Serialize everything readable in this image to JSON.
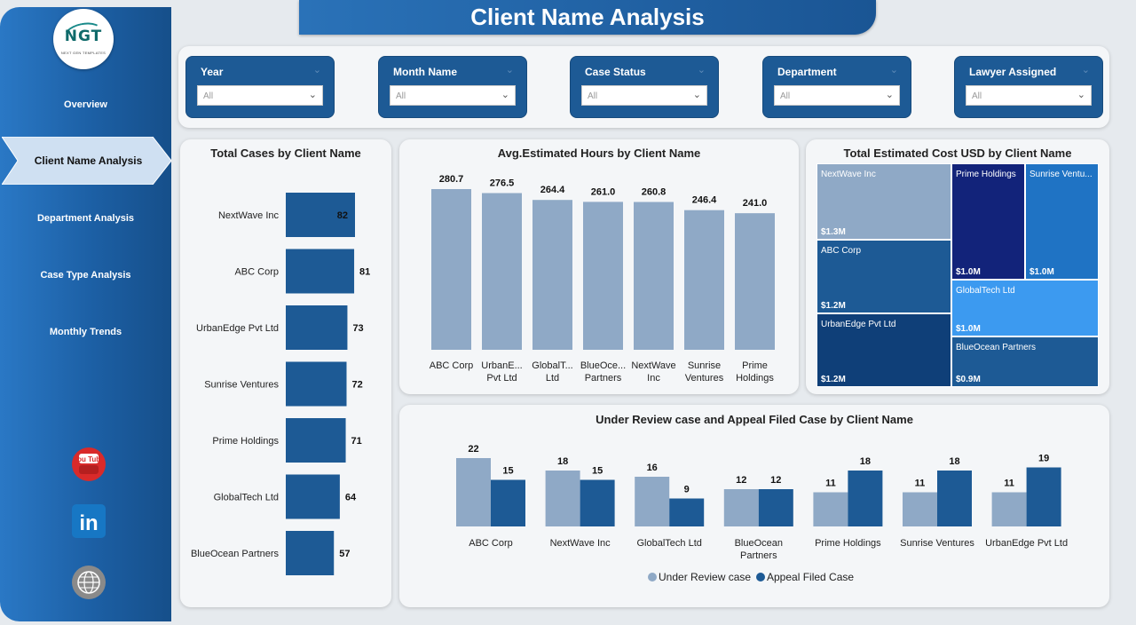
{
  "title": "Client Name Analysis",
  "logo": {
    "text": "NGT",
    "sub": "NEXT GEN TEMPLATES"
  },
  "nav": {
    "items": [
      "Overview",
      "Client Name Analysis",
      "Department Analysis",
      "Case Type Analysis",
      "Monthly Trends"
    ],
    "active": "Client Name Analysis"
  },
  "social": {
    "youtube": "You Tube",
    "linkedin": "in"
  },
  "icons": {
    "youtube": "youtube-icon",
    "linkedin": "linkedin-icon",
    "web": "globe-www-icon"
  },
  "filters": [
    {
      "label": "Year",
      "value": "All"
    },
    {
      "label": "Month Name",
      "value": "All"
    },
    {
      "label": "Case Status",
      "value": "All"
    },
    {
      "label": "Department",
      "value": "All"
    },
    {
      "label": "Lawyer Assigned",
      "value": "All"
    }
  ],
  "colors": {
    "dark_blue": "#1d5a95",
    "light_blue": "#8fa9c6",
    "accent": "#2a72b8"
  },
  "chart_data": [
    {
      "type": "bar",
      "orientation": "horizontal",
      "title": "Total Cases by Client Name",
      "categories": [
        "NextWave Inc",
        "ABC Corp",
        "UrbanEdge Pvt Ltd",
        "Sunrise Ventures",
        "Prime Holdings",
        "GlobalTech Ltd",
        "BlueOcean Partners"
      ],
      "values": [
        82,
        81,
        73,
        72,
        71,
        64,
        57
      ]
    },
    {
      "type": "bar",
      "title": "Avg.Estimated Hours by Client Name",
      "categories": [
        "ABC Corp",
        "UrbanEdge Pvt Ltd",
        "GlobalTech Ltd",
        "BlueOcean Partners",
        "NextWave Inc",
        "Sunrise Ventures",
        "Prime Holdings"
      ],
      "category_labels": [
        [
          "ABC Corp"
        ],
        [
          "UrbanE...",
          "Pvt Ltd"
        ],
        [
          "GlobalT...",
          "Ltd"
        ],
        [
          "BlueOce...",
          "Partners"
        ],
        [
          "NextWave",
          "Inc"
        ],
        [
          "Sunrise",
          "Ventures"
        ],
        [
          "Prime",
          "Holdings"
        ]
      ],
      "values": [
        280.7,
        276.5,
        264.4,
        261.0,
        260.8,
        246.4,
        241.0
      ],
      "value_labels": [
        "280.7",
        "276.5",
        "264.4",
        "261.0",
        "260.8",
        "246.4",
        "241.0"
      ]
    },
    {
      "type": "treemap",
      "title": "Total Estimated Cost USD by Client Name",
      "items": [
        {
          "name": "NextWave Inc",
          "value": 1.3,
          "label": "$1.3M",
          "color": "#8fa9c6"
        },
        {
          "name": "ABC Corp",
          "value": 1.2,
          "label": "$1.2M",
          "color": "#1d5a95"
        },
        {
          "name": "UrbanEdge Pvt Ltd",
          "value": 1.2,
          "label": "$1.2M",
          "color": "#0f3f78"
        },
        {
          "name": "Prime Holdings",
          "value": 1.0,
          "label": "$1.0M",
          "color": "#12237a"
        },
        {
          "name": "Sunrise Ventu...",
          "value": 1.0,
          "label": "$1.0M",
          "color": "#1f73c4"
        },
        {
          "name": "GlobalTech Ltd",
          "value": 1.0,
          "label": "$1.0M",
          "color": "#3c9af0"
        },
        {
          "name": "BlueOcean Partners",
          "value": 0.9,
          "label": "$0.9M",
          "color": "#1d5a95"
        }
      ]
    },
    {
      "type": "bar",
      "title": "Under Review case and Appeal Filed Case by Client Name",
      "categories": [
        "ABC Corp",
        "NextWave Inc",
        "GlobalTech Ltd",
        "BlueOcean Partners",
        "Prime Holdings",
        "Sunrise Ventures",
        "UrbanEdge Pvt Ltd"
      ],
      "category_labels": [
        [
          "ABC Corp"
        ],
        [
          "NextWave Inc"
        ],
        [
          "GlobalTech Ltd"
        ],
        [
          "BlueOcean",
          "Partners"
        ],
        [
          "Prime Holdings"
        ],
        [
          "Sunrise Ventures"
        ],
        [
          "UrbanEdge Pvt Ltd"
        ]
      ],
      "series": [
        {
          "name": "Under Review case",
          "color": "#8fa9c6",
          "values": [
            22,
            18,
            16,
            12,
            11,
            11,
            11
          ]
        },
        {
          "name": "Appeal Filed Case",
          "color": "#1d5a95",
          "values": [
            15,
            15,
            9,
            12,
            18,
            18,
            19
          ]
        }
      ],
      "legend": "bottom-center"
    }
  ]
}
